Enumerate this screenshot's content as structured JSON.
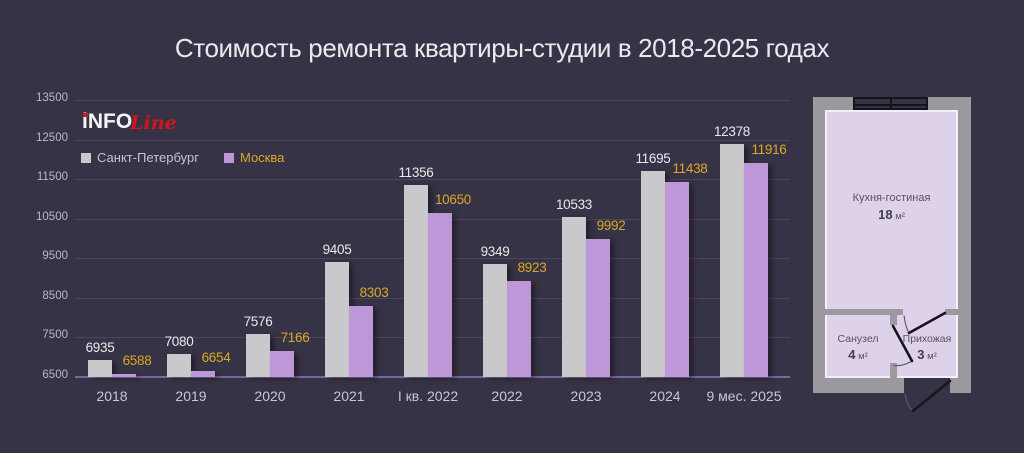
{
  "title": "Стоимость ремонта квартиры-студии в 2018-2025 годах",
  "logo": {
    "part1": "iNFO",
    "part2": "Line"
  },
  "legend": {
    "spb": "Санкт-Петербург",
    "moscow": "Москва"
  },
  "chart_data": {
    "type": "bar",
    "title": "Стоимость ремонта квартиры-студии в 2018-2025 годах",
    "categories": [
      "2018",
      "2019",
      "2020",
      "2021",
      "I кв. 2022",
      "2022",
      "2023",
      "2024",
      "9 мес. 2025"
    ],
    "series": [
      {
        "name": "Санкт-Петербург",
        "color": "#c9c8ca",
        "label_color": "#e9e8ed",
        "values": [
          6935,
          7080,
          7576,
          9405,
          11356,
          9349,
          10533,
          11695,
          12378
        ]
      },
      {
        "name": "Москва",
        "color": "#bd97d8",
        "label_color": "#d8a826",
        "values": [
          6588,
          6654,
          7166,
          8303,
          10650,
          8923,
          9992,
          11438,
          11916
        ]
      }
    ],
    "ylim": [
      6500,
      13500
    ],
    "yticks": [
      6500,
      7500,
      8500,
      9500,
      10500,
      11500,
      12500,
      13500
    ],
    "grid": true,
    "legend_position": "top-left"
  },
  "floorplan": {
    "rooms": [
      {
        "name": "Кухня-гостиная",
        "area": "18",
        "unit": "м²"
      },
      {
        "name": "Санузел",
        "area": "4",
        "unit": "м²"
      },
      {
        "name": "Прихожая",
        "area": "3",
        "unit": "м²"
      }
    ]
  },
  "colors": {
    "background": "#373346",
    "accent_gold": "#d8a826",
    "logo_red": "#d2141f"
  }
}
